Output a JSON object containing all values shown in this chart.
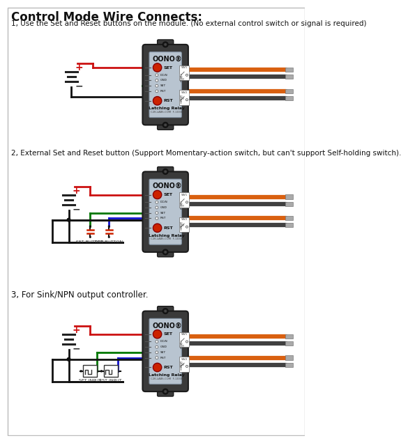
{
  "title": "Control Mode Wire Connects:",
  "bg_color": "#ffffff",
  "section1_label": "1, Use the Set and Reset buttons on the module. (No external control switch or signal is required)",
  "section2_label": "2, External Set and Reset button (Support Momentary-action switch, but can't support Self-holding switch).",
  "section3_label": "3, For Sink/NPN output controller.",
  "relay_label": "OONO®",
  "relay_sub": "Latching Relay",
  "relay_sub2": "C2K-LABS.COM  F-1030",
  "wire_red": "#cc1111",
  "wire_orange": "#d96010",
  "wire_gray": "#707070",
  "wire_dark_gray": "#404040",
  "wire_green": "#007700",
  "wire_blue": "#1010cc",
  "wire_black": "#111111",
  "relay_body": "#3a3a3a",
  "relay_face": "#b8c4d0",
  "relay_face_edge": "#8899aa",
  "btn_color": "#cc2200",
  "btn_edge": "#880000",
  "pin_circle": "#ffffff",
  "sw_box": "#ffffff"
}
